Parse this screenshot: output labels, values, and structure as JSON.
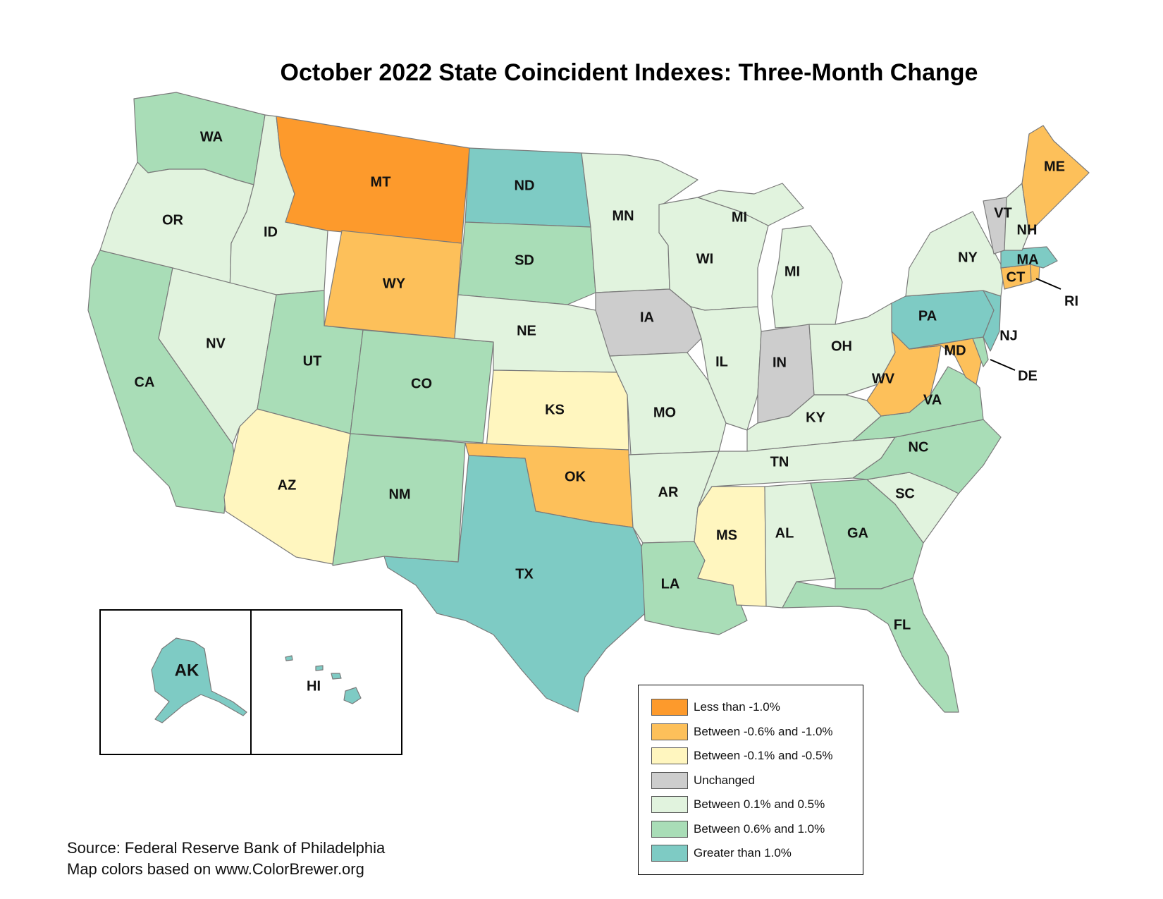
{
  "title": "October 2022 State Coincident Indexes: Three-Month Change",
  "colors": {
    "lt_neg1": "#fd9a2c",
    "neg06_neg1": "#fdc05a",
    "neg01_neg05": "#fff6bf",
    "unchanged": "#cdcdcd",
    "p01_p05": "#e1f3de",
    "p06_p10": "#a9ddb7",
    "gt_1": "#7ecbc4"
  },
  "legend": [
    {
      "key": "lt_neg1",
      "label": "Less than -1.0%"
    },
    {
      "key": "neg06_neg1",
      "label": "Between -0.6% and -1.0%"
    },
    {
      "key": "neg01_neg05",
      "label": "Between -0.1% and -0.5%"
    },
    {
      "key": "unchanged",
      "label": "Unchanged"
    },
    {
      "key": "p01_p05",
      "label": "Between 0.1% and 0.5%"
    },
    {
      "key": "p06_p10",
      "label": "Between 0.6% and 1.0%"
    },
    {
      "key": "gt_1",
      "label": "Greater than 1.0%"
    }
  ],
  "states": {
    "WA": "p06_p10",
    "OR": "p01_p05",
    "CA": "p06_p10",
    "ID": "p01_p05",
    "NV": "p01_p05",
    "MT": "lt_neg1",
    "WY": "neg06_neg1",
    "UT": "p06_p10",
    "AZ": "neg01_neg05",
    "CO": "p06_p10",
    "NM": "p06_p10",
    "ND": "gt_1",
    "SD": "p06_p10",
    "NE": "p01_p05",
    "KS": "neg01_neg05",
    "OK": "neg06_neg1",
    "TX": "gt_1",
    "MN": "p01_p05",
    "IA": "unchanged",
    "MO": "p01_p05",
    "AR": "p01_p05",
    "LA": "p06_p10",
    "WI": "p01_p05",
    "IL": "p01_p05",
    "MI": "p01_p05",
    "IN": "unchanged",
    "OH": "p01_p05",
    "KY": "p01_p05",
    "TN": "p01_p05",
    "MS": "neg01_neg05",
    "AL": "p01_p05",
    "GA": "p06_p10",
    "FL": "p06_p10",
    "SC": "p01_p05",
    "NC": "p06_p10",
    "VA": "p06_p10",
    "WV": "neg06_neg1",
    "MD": "neg06_neg1",
    "DE": "p06_p10",
    "PA": "gt_1",
    "NJ": "gt_1",
    "NY": "p01_p05",
    "CT": "neg06_neg1",
    "RI": "neg06_neg1",
    "MA": "gt_1",
    "VT": "unchanged",
    "NH": "p01_p05",
    "ME": "neg06_neg1",
    "AK": "gt_1",
    "HI": "gt_1"
  },
  "state_labels": {
    "WA": "WA",
    "OR": "OR",
    "CA": "CA",
    "ID": "ID",
    "NV": "NV",
    "MT": "MT",
    "WY": "WY",
    "UT": "UT",
    "AZ": "AZ",
    "CO": "CO",
    "NM": "NM",
    "ND": "ND",
    "SD": "SD",
    "NE": "NE",
    "KS": "KS",
    "OK": "OK",
    "TX": "TX",
    "MN": "MN",
    "IA": "IA",
    "MO": "MO",
    "AR": "AR",
    "LA": "LA",
    "WI": "WI",
    "IL": "IL",
    "MI": "MI",
    "MI_UP": "MI",
    "IN": "IN",
    "OH": "OH",
    "KY": "KY",
    "TN": "TN",
    "MS": "MS",
    "AL": "AL",
    "GA": "GA",
    "FL": "FL",
    "SC": "SC",
    "NC": "NC",
    "VA": "VA",
    "WV": "WV",
    "MD": "MD",
    "DE": "DE",
    "PA": "PA",
    "NJ": "NJ",
    "NY": "NY",
    "CT": "CT",
    "RI": "RI",
    "MA": "MA",
    "VT": "VT",
    "NH": "NH",
    "ME": "ME",
    "AK": "AK",
    "HI": "HI"
  },
  "source": {
    "line1": "Source: Federal Reserve Bank of Philadelphia",
    "line2": "Map colors based on www.ColorBrewer.org"
  }
}
